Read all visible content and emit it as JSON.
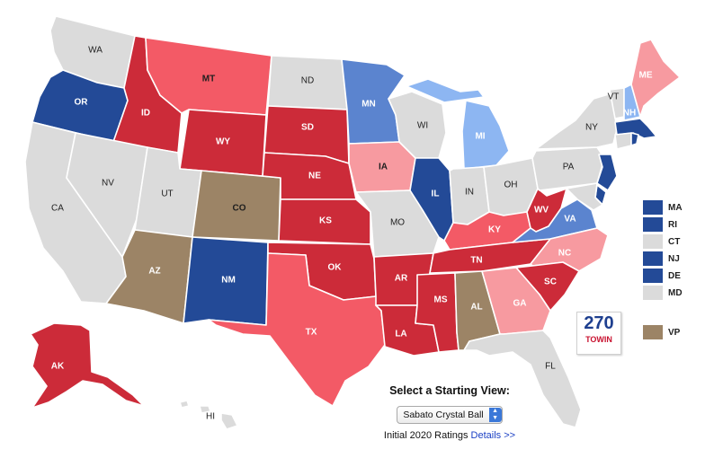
{
  "colors": {
    "safe_dem": "#234a97",
    "likely_dem": "#5b84cf",
    "lean_dem": "#8db6f2",
    "toss_up": "#dbdbdb",
    "lean_rep": "#f79aa0",
    "likely_rep": "#f35a66",
    "safe_rep": "#cc2b39",
    "vp": "#9c8466"
  },
  "states": {
    "WA": "WA",
    "OR": "OR",
    "CA": "CA",
    "ID": "ID",
    "NV": "NV",
    "MT": "MT",
    "WY": "WY",
    "UT": "UT",
    "AZ": "AZ",
    "CO": "CO",
    "NM": "NM",
    "ND": "ND",
    "SD": "SD",
    "NE": "NE",
    "KS": "KS",
    "OK": "OK",
    "TX": "TX",
    "MN": "MN",
    "IA": "IA",
    "MO": "MO",
    "AR": "AR",
    "LA": "LA",
    "WI": "WI",
    "IL": "IL",
    "MI": "MI",
    "IN": "IN",
    "KY": "KY",
    "TN": "TN",
    "MS": "MS",
    "AL": "AL",
    "OH": "OH",
    "WV": "WV",
    "VA": "VA",
    "NC": "NC",
    "SC": "SC",
    "GA": "GA",
    "FL": "FL",
    "PA": "PA",
    "NY": "NY",
    "ME": "ME",
    "VT": "VT",
    "NH": "NH",
    "AK": "AK",
    "HI": "HI"
  },
  "legend": {
    "items": [
      {
        "label": "MA",
        "color": "#234a97"
      },
      {
        "label": "RI",
        "color": "#234a97"
      },
      {
        "label": "CT",
        "color": "#dbdbdb"
      },
      {
        "label": "NJ",
        "color": "#234a97"
      },
      {
        "label": "DE",
        "color": "#234a97"
      },
      {
        "label": "MD",
        "color": "#dbdbdb"
      }
    ],
    "vp": {
      "label": "VP",
      "color": "#9c8466"
    }
  },
  "logo": {
    "number": "270",
    "sub": "TOWIN"
  },
  "starting_view": {
    "title": "Select a Starting View:",
    "selected": "Sabato Crystal Ball",
    "ratings_text": "Initial 2020 Ratings",
    "details_link": "Details >>"
  }
}
